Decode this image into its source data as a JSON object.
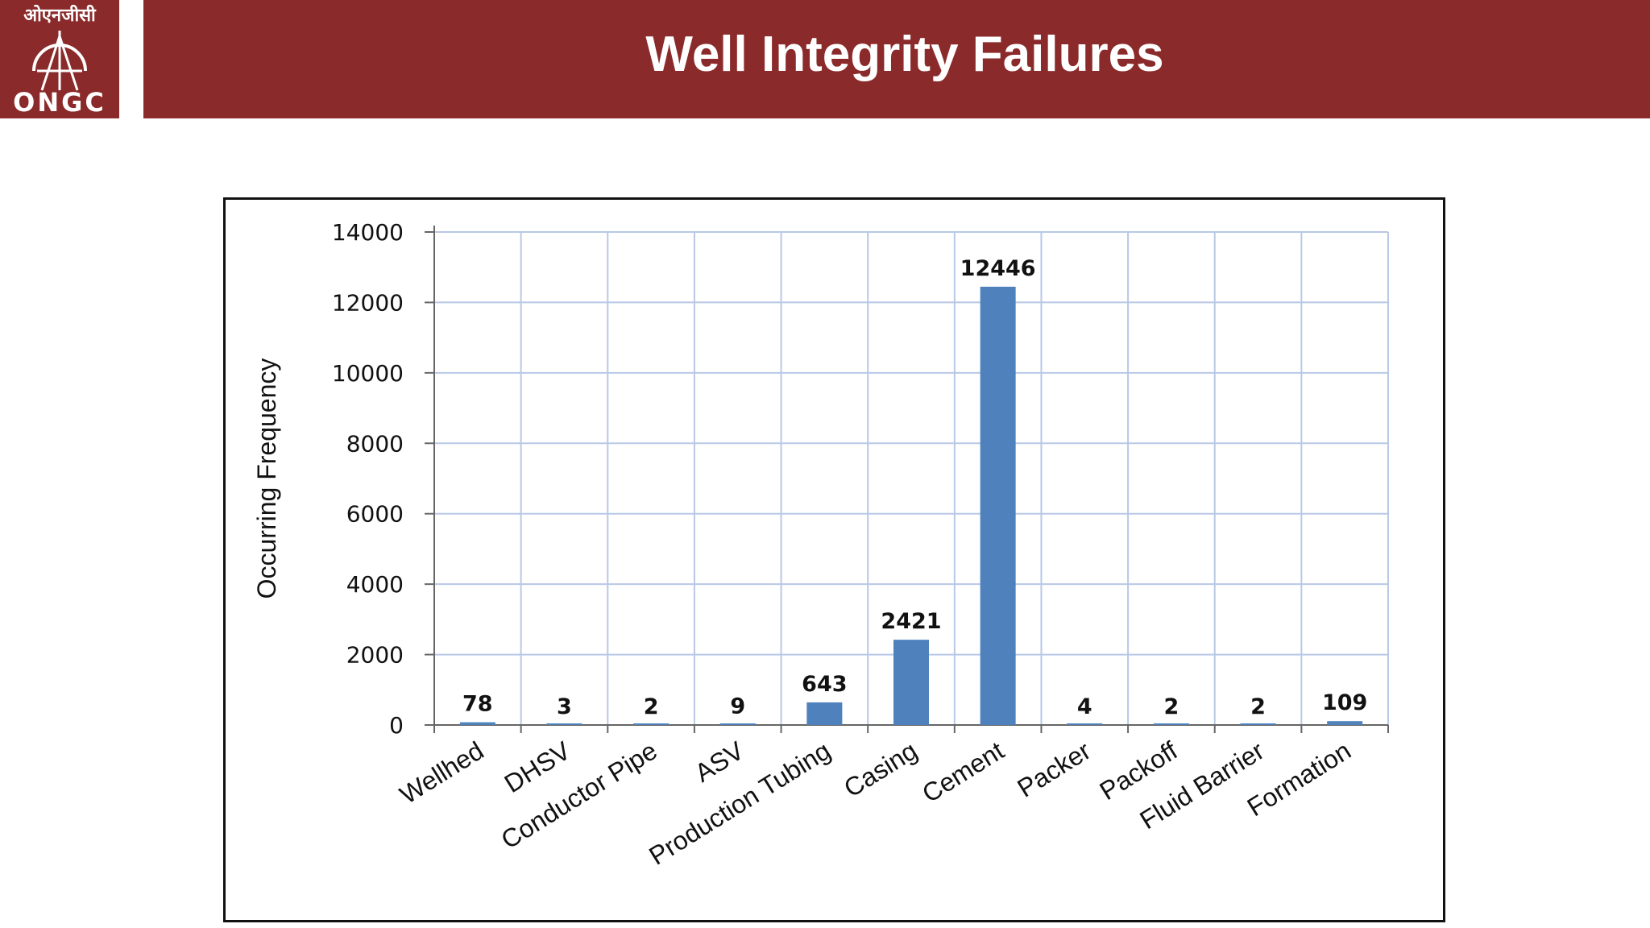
{
  "header": {
    "title": "Well Integrity Failures",
    "background_color": "#8b2a2a"
  },
  "logo": {
    "name": "ongc-logo",
    "text_hindi": "ओएनजीसी",
    "text_latin": "ONGC"
  },
  "chart_data": {
    "type": "bar",
    "title": "",
    "xlabel": "",
    "ylabel": "Occurring Frequency",
    "ylim": [
      0,
      14000
    ],
    "yticks": [
      "0",
      "2000",
      "4000",
      "6000",
      "8000",
      "10000",
      "12000",
      "14000"
    ],
    "categories": [
      "Wellhed",
      "DHSV",
      "Conductor Pipe",
      "ASV",
      "Production Tubing",
      "Casing",
      "Cement",
      "Packer",
      "Packoff",
      "Fluid Barrier",
      "Formation"
    ],
    "values": [
      78,
      3,
      2,
      9,
      643,
      2421,
      12446,
      4,
      2,
      2,
      109
    ],
    "data_labels": [
      "78",
      "3",
      "2",
      "9",
      "643",
      "2421",
      "12446",
      "4",
      "2",
      "2",
      "109"
    ],
    "bar_color": "#4f81bd",
    "grid_color": "#b8c8e6",
    "grid": true,
    "legend": "none"
  }
}
